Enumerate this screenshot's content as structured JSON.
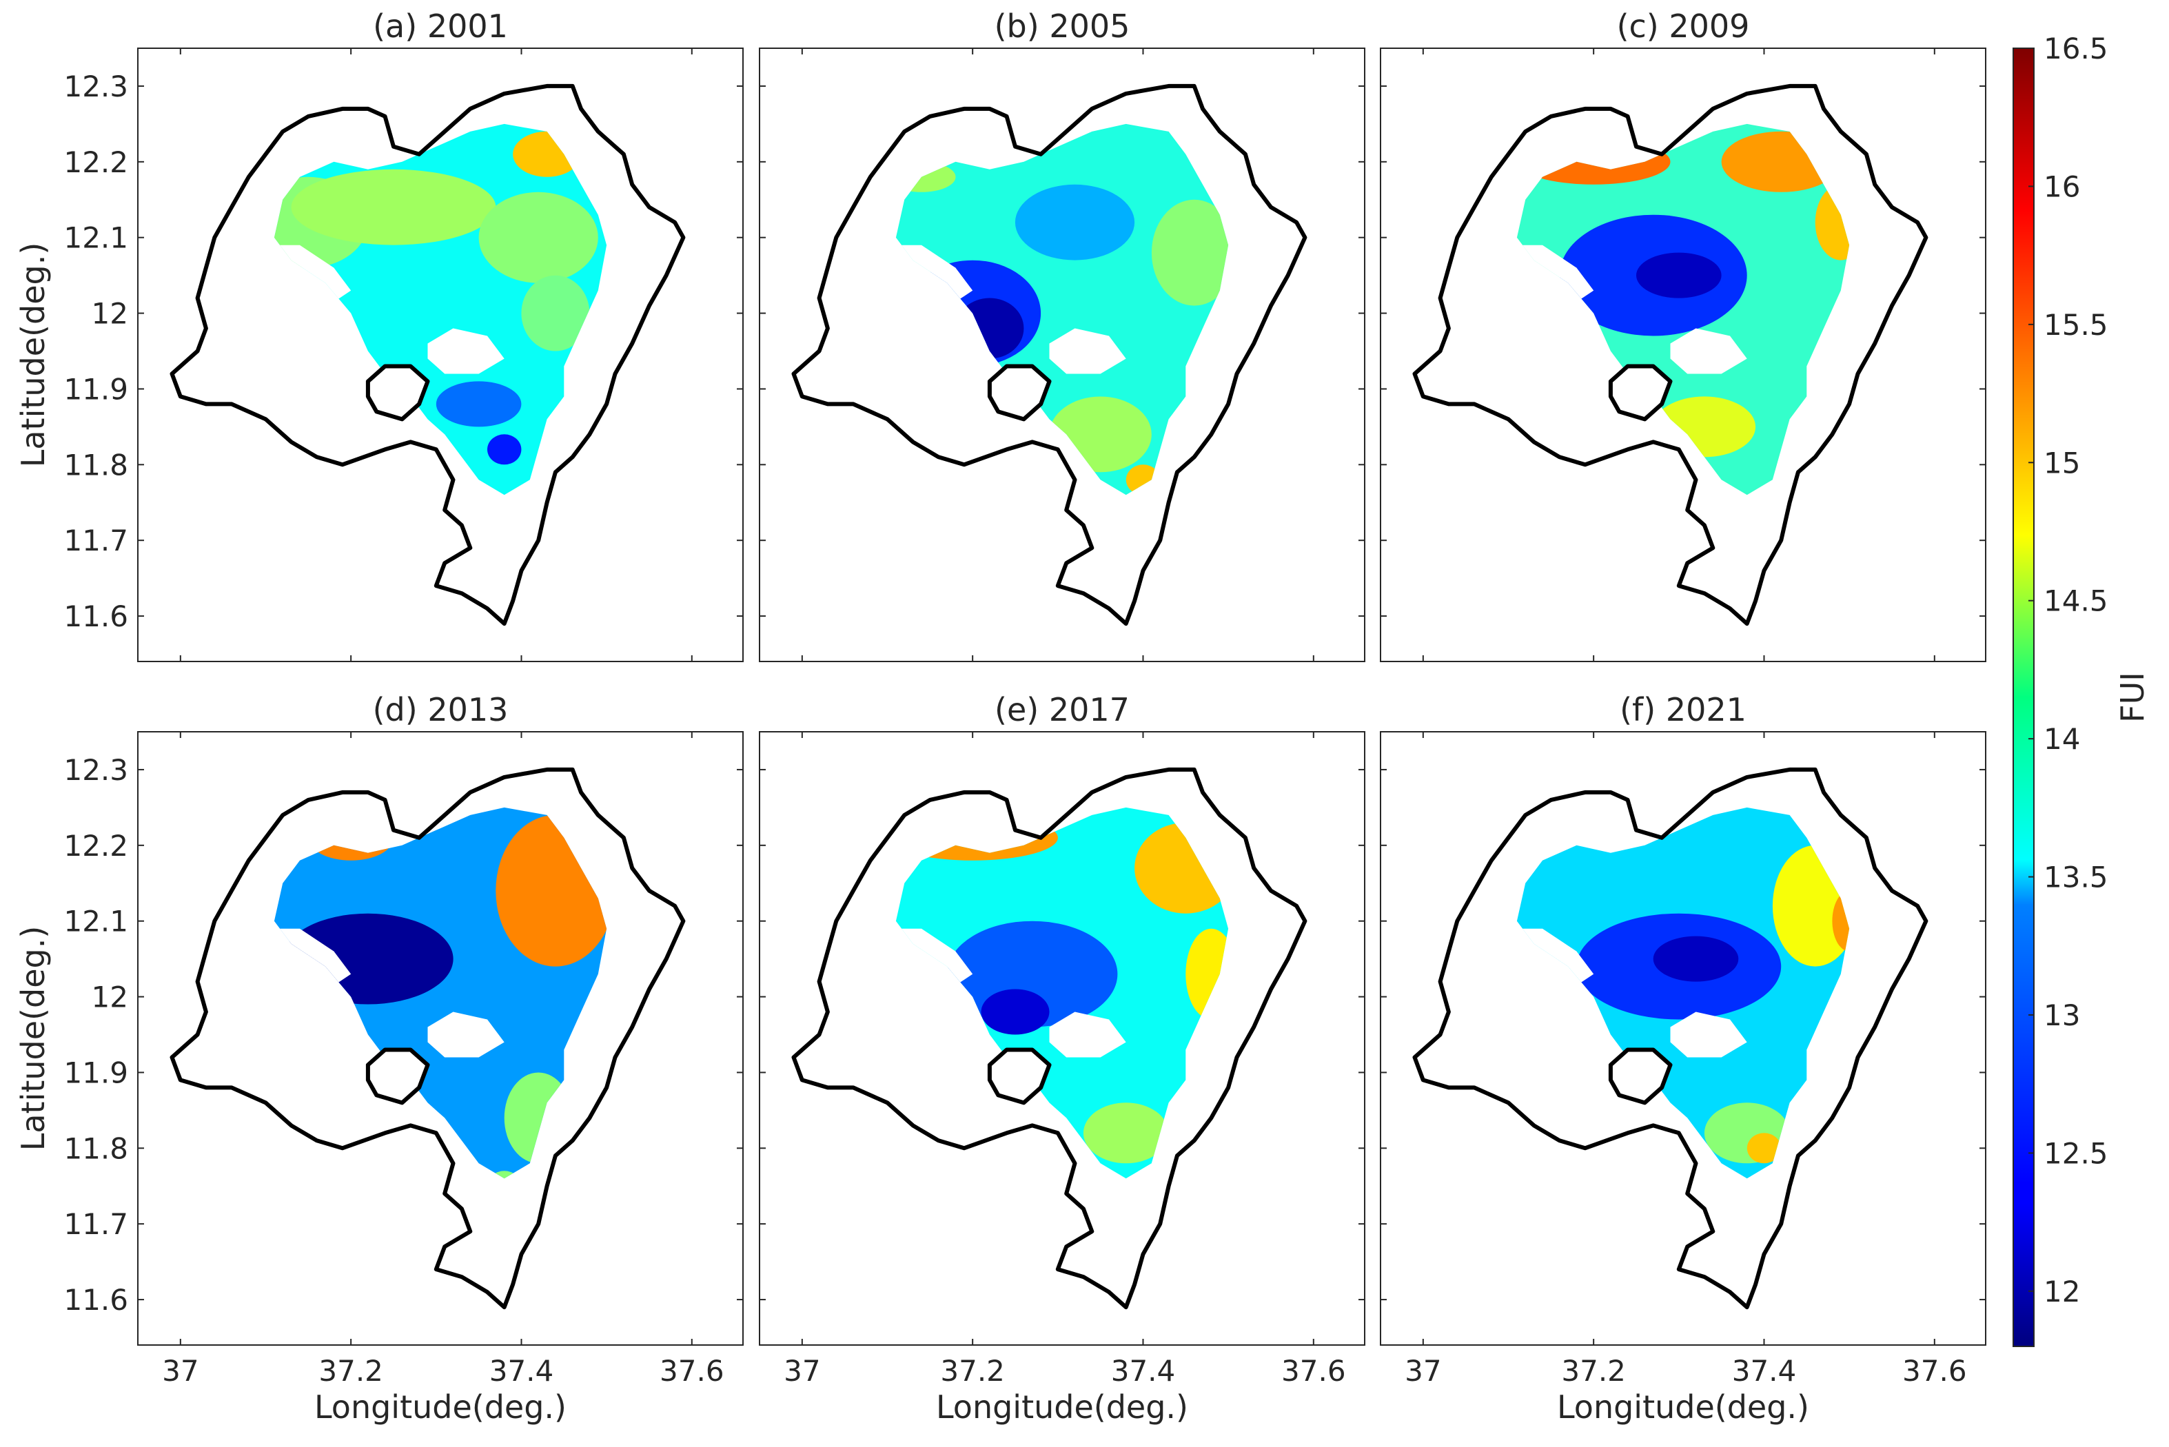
{
  "chart_data": {
    "type": "heatmap",
    "figure_description_colorbar": {
      "label": "FUI",
      "range": [
        11.8,
        16.5
      ],
      "ticks": [
        12,
        12.5,
        13,
        13.5,
        14,
        14.5,
        15,
        15.5,
        16,
        16.5
      ],
      "tick_labels": [
        "12",
        "12.5",
        "13",
        "13.5",
        "14",
        "14.5",
        "15",
        "15.5",
        "16",
        "16.5"
      ],
      "colormap": "jet"
    },
    "xlabel": "Longitude(deg.)",
    "ylabel": "Latitude(deg.)",
    "xlim": [
      36.95,
      37.66
    ],
    "ylim": [
      11.54,
      12.35
    ],
    "x_ticks": [
      37,
      37.2,
      37.4,
      37.6
    ],
    "x_tick_labels": [
      "37",
      "37.2",
      "37.4",
      "37.6"
    ],
    "y_ticks": [
      11.6,
      11.7,
      11.8,
      11.9,
      12,
      12.1,
      12.2,
      12.3
    ],
    "y_tick_labels": [
      "11.6",
      "11.7",
      "11.8",
      "11.9",
      "12",
      "12.1",
      "12.2",
      "12.3"
    ],
    "lake_outline": [
      [
        37.1,
        12.21
      ],
      [
        37.12,
        12.24
      ],
      [
        37.15,
        12.26
      ],
      [
        37.19,
        12.27
      ],
      [
        37.22,
        12.27
      ],
      [
        37.24,
        12.26
      ],
      [
        37.25,
        12.22
      ],
      [
        37.28,
        12.21
      ],
      [
        37.31,
        12.24
      ],
      [
        37.34,
        12.27
      ],
      [
        37.38,
        12.29
      ],
      [
        37.43,
        12.3
      ],
      [
        37.46,
        12.3
      ],
      [
        37.47,
        12.27
      ],
      [
        37.49,
        12.24
      ],
      [
        37.52,
        12.21
      ],
      [
        37.53,
        12.17
      ],
      [
        37.55,
        12.14
      ],
      [
        37.58,
        12.12
      ],
      [
        37.59,
        12.1
      ],
      [
        37.57,
        12.05
      ],
      [
        37.55,
        12.01
      ],
      [
        37.53,
        11.96
      ],
      [
        37.51,
        11.92
      ],
      [
        37.5,
        11.88
      ],
      [
        37.48,
        11.84
      ],
      [
        37.46,
        11.81
      ],
      [
        37.44,
        11.79
      ],
      [
        37.43,
        11.75
      ],
      [
        37.42,
        11.7
      ],
      [
        37.4,
        11.66
      ],
      [
        37.39,
        11.62
      ],
      [
        37.38,
        11.59
      ],
      [
        37.36,
        11.61
      ],
      [
        37.33,
        11.63
      ],
      [
        37.3,
        11.64
      ],
      [
        37.31,
        11.67
      ],
      [
        37.34,
        11.69
      ],
      [
        37.33,
        11.72
      ],
      [
        37.31,
        11.74
      ],
      [
        37.32,
        11.78
      ],
      [
        37.3,
        11.82
      ],
      [
        37.27,
        11.83
      ],
      [
        37.24,
        11.82
      ],
      [
        37.19,
        11.8
      ],
      [
        37.16,
        11.81
      ],
      [
        37.13,
        11.83
      ],
      [
        37.1,
        11.86
      ],
      [
        37.06,
        11.88
      ],
      [
        37.03,
        11.88
      ],
      [
        37.0,
        11.89
      ],
      [
        36.99,
        11.92
      ],
      [
        37.02,
        11.95
      ],
      [
        37.03,
        11.98
      ],
      [
        37.02,
        12.02
      ],
      [
        37.03,
        12.06
      ],
      [
        37.04,
        12.1
      ],
      [
        37.06,
        12.14
      ],
      [
        37.08,
        12.18
      ],
      [
        37.1,
        12.21
      ]
    ],
    "island_outline": [
      [
        37.22,
        11.91
      ],
      [
        37.24,
        11.93
      ],
      [
        37.27,
        11.93
      ],
      [
        37.29,
        11.91
      ],
      [
        37.28,
        11.88
      ],
      [
        37.26,
        11.86
      ],
      [
        37.23,
        11.87
      ],
      [
        37.22,
        11.89
      ],
      [
        37.22,
        11.91
      ]
    ],
    "water_extent": [
      [
        37.12,
        12.15
      ],
      [
        37.14,
        12.18
      ],
      [
        37.18,
        12.2
      ],
      [
        37.22,
        12.19
      ],
      [
        37.26,
        12.2
      ],
      [
        37.3,
        12.22
      ],
      [
        37.34,
        12.24
      ],
      [
        37.38,
        12.25
      ],
      [
        37.43,
        12.24
      ],
      [
        37.45,
        12.21
      ],
      [
        37.47,
        12.17
      ],
      [
        37.49,
        12.13
      ],
      [
        37.5,
        12.09
      ],
      [
        37.49,
        12.03
      ],
      [
        37.47,
        11.98
      ],
      [
        37.45,
        11.93
      ],
      [
        37.45,
        11.89
      ],
      [
        37.43,
        11.86
      ],
      [
        37.42,
        11.82
      ],
      [
        37.41,
        11.78
      ],
      [
        37.38,
        11.76
      ],
      [
        37.35,
        11.78
      ],
      [
        37.33,
        11.81
      ],
      [
        37.31,
        11.84
      ],
      [
        37.29,
        11.86
      ],
      [
        37.27,
        11.89
      ],
      [
        37.24,
        11.92
      ],
      [
        37.22,
        11.95
      ],
      [
        37.2,
        12.0
      ],
      [
        37.17,
        12.04
      ],
      [
        37.13,
        12.07
      ],
      [
        37.11,
        12.1
      ],
      [
        37.12,
        12.15
      ]
    ],
    "no_data_gaps": [
      [
        [
          37.09,
          12.09
        ],
        [
          37.14,
          12.09
        ],
        [
          37.18,
          12.06
        ],
        [
          37.2,
          12.03
        ],
        [
          37.16,
          12.0
        ],
        [
          37.12,
          12.02
        ],
        [
          37.09,
          12.06
        ]
      ],
      [
        [
          37.29,
          11.96
        ],
        [
          37.32,
          11.98
        ],
        [
          37.36,
          11.97
        ],
        [
          37.38,
          11.94
        ],
        [
          37.35,
          11.92
        ],
        [
          37.31,
          11.92
        ],
        [
          37.29,
          11.94
        ]
      ]
    ],
    "panels": [
      {
        "title": "(a) 2001",
        "base_fui": 13.6,
        "regions": [
          {
            "cx": 37.15,
            "cy": 12.12,
            "rx": 0.07,
            "ry": 0.06,
            "fui": 14.2
          },
          {
            "cx": 37.25,
            "cy": 12.14,
            "rx": 0.12,
            "ry": 0.05,
            "fui": 14.3
          },
          {
            "cx": 37.42,
            "cy": 12.1,
            "rx": 0.07,
            "ry": 0.06,
            "fui": 14.2
          },
          {
            "cx": 37.43,
            "cy": 12.21,
            "rx": 0.04,
            "ry": 0.03,
            "fui": 15.0
          },
          {
            "cx": 37.44,
            "cy": 12.0,
            "rx": 0.04,
            "ry": 0.05,
            "fui": 14.1
          },
          {
            "cx": 37.35,
            "cy": 11.88,
            "rx": 0.05,
            "ry": 0.03,
            "fui": 12.9
          },
          {
            "cx": 37.38,
            "cy": 11.82,
            "rx": 0.02,
            "ry": 0.02,
            "fui": 12.5
          },
          {
            "cx": 37.37,
            "cy": 11.74,
            "rx": 0.02,
            "ry": 0.02,
            "fui": 13.6
          }
        ]
      },
      {
        "title": "(b) 2005",
        "base_fui": 13.7,
        "regions": [
          {
            "cx": 37.2,
            "cy": 12.0,
            "rx": 0.08,
            "ry": 0.07,
            "fui": 12.6
          },
          {
            "cx": 37.22,
            "cy": 11.98,
            "rx": 0.04,
            "ry": 0.04,
            "fui": 12.0
          },
          {
            "cx": 37.32,
            "cy": 12.12,
            "rx": 0.07,
            "ry": 0.05,
            "fui": 13.2
          },
          {
            "cx": 37.46,
            "cy": 12.08,
            "rx": 0.05,
            "ry": 0.07,
            "fui": 14.2
          },
          {
            "cx": 37.35,
            "cy": 11.84,
            "rx": 0.06,
            "ry": 0.05,
            "fui": 14.3
          },
          {
            "cx": 37.4,
            "cy": 11.78,
            "rx": 0.02,
            "ry": 0.02,
            "fui": 15.0
          },
          {
            "cx": 37.39,
            "cy": 11.7,
            "rx": 0.02,
            "ry": 0.02,
            "fui": 15.2
          },
          {
            "cx": 37.14,
            "cy": 12.18,
            "rx": 0.04,
            "ry": 0.02,
            "fui": 14.3
          }
        ]
      },
      {
        "title": "(c) 2009",
        "base_fui": 13.8,
        "regions": [
          {
            "cx": 37.27,
            "cy": 12.05,
            "rx": 0.11,
            "ry": 0.08,
            "fui": 12.6
          },
          {
            "cx": 37.3,
            "cy": 12.05,
            "rx": 0.05,
            "ry": 0.03,
            "fui": 12.1
          },
          {
            "cx": 37.2,
            "cy": 12.2,
            "rx": 0.09,
            "ry": 0.03,
            "fui": 15.4
          },
          {
            "cx": 37.42,
            "cy": 12.2,
            "rx": 0.07,
            "ry": 0.04,
            "fui": 15.2
          },
          {
            "cx": 37.12,
            "cy": 12.21,
            "rx": 0.02,
            "ry": 0.02,
            "fui": 16.0
          },
          {
            "cx": 37.49,
            "cy": 12.12,
            "rx": 0.03,
            "ry": 0.05,
            "fui": 15.0
          },
          {
            "cx": 37.33,
            "cy": 11.85,
            "rx": 0.06,
            "ry": 0.04,
            "fui": 14.6
          },
          {
            "cx": 37.39,
            "cy": 11.72,
            "rx": 0.02,
            "ry": 0.02,
            "fui": 14.0
          }
        ]
      },
      {
        "title": "(d) 2013",
        "base_fui": 13.1,
        "regions": [
          {
            "cx": 37.22,
            "cy": 12.05,
            "rx": 0.1,
            "ry": 0.06,
            "fui": 11.9
          },
          {
            "cx": 37.44,
            "cy": 12.14,
            "rx": 0.07,
            "ry": 0.1,
            "fui": 15.3
          },
          {
            "cx": 37.52,
            "cy": 12.12,
            "rx": 0.02,
            "ry": 0.04,
            "fui": 16.4
          },
          {
            "cx": 37.2,
            "cy": 12.21,
            "rx": 0.05,
            "ry": 0.03,
            "fui": 15.3
          },
          {
            "cx": 37.42,
            "cy": 11.84,
            "rx": 0.04,
            "ry": 0.06,
            "fui": 14.2
          },
          {
            "cx": 37.38,
            "cy": 11.75,
            "rx": 0.02,
            "ry": 0.02,
            "fui": 14.2
          }
        ]
      },
      {
        "title": "(e) 2017",
        "base_fui": 13.6,
        "regions": [
          {
            "cx": 37.27,
            "cy": 12.03,
            "rx": 0.1,
            "ry": 0.07,
            "fui": 12.8
          },
          {
            "cx": 37.25,
            "cy": 11.98,
            "rx": 0.04,
            "ry": 0.03,
            "fui": 12.2
          },
          {
            "cx": 37.2,
            "cy": 12.21,
            "rx": 0.1,
            "ry": 0.03,
            "fui": 15.2
          },
          {
            "cx": 37.45,
            "cy": 12.17,
            "rx": 0.06,
            "ry": 0.06,
            "fui": 15.0
          },
          {
            "cx": 37.48,
            "cy": 12.03,
            "rx": 0.03,
            "ry": 0.06,
            "fui": 14.8
          },
          {
            "cx": 37.38,
            "cy": 11.82,
            "rx": 0.05,
            "ry": 0.04,
            "fui": 14.3
          },
          {
            "cx": 37.39,
            "cy": 11.69,
            "rx": 0.02,
            "ry": 0.02,
            "fui": 15.1
          }
        ]
      },
      {
        "title": "(f) 2021",
        "base_fui": 13.4,
        "regions": [
          {
            "cx": 37.3,
            "cy": 12.04,
            "rx": 0.12,
            "ry": 0.07,
            "fui": 12.6
          },
          {
            "cx": 37.32,
            "cy": 12.05,
            "rx": 0.05,
            "ry": 0.03,
            "fui": 12.1
          },
          {
            "cx": 37.46,
            "cy": 12.12,
            "rx": 0.05,
            "ry": 0.08,
            "fui": 14.7
          },
          {
            "cx": 37.5,
            "cy": 12.1,
            "rx": 0.02,
            "ry": 0.04,
            "fui": 15.2
          },
          {
            "cx": 37.38,
            "cy": 11.82,
            "rx": 0.05,
            "ry": 0.04,
            "fui": 14.2
          },
          {
            "cx": 37.4,
            "cy": 11.8,
            "rx": 0.02,
            "ry": 0.02,
            "fui": 15.0
          },
          {
            "cx": 37.39,
            "cy": 11.7,
            "rx": 0.02,
            "ry": 0.02,
            "fui": 15.1
          }
        ]
      }
    ]
  }
}
